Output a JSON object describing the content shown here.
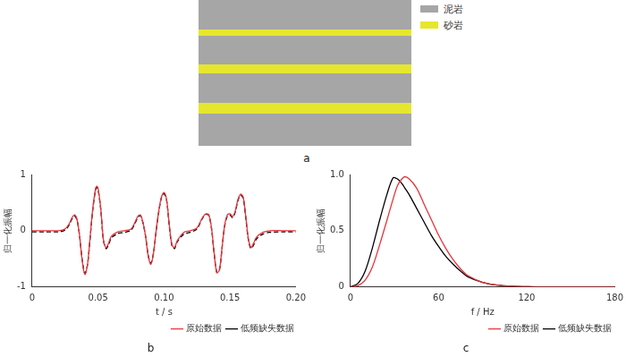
{
  "model": {
    "label": "a",
    "legend": [
      {
        "name": "泥岩",
        "color": "#a6a6a6"
      },
      {
        "name": "砂岩",
        "color": "#e6e62e"
      }
    ],
    "layers": [
      "泥岩",
      "砂岩",
      "泥岩",
      "砂岩",
      "泥岩",
      "砂岩",
      "泥岩"
    ]
  },
  "chart_data": [
    {
      "type": "line",
      "title": "b",
      "x_label": "t / s",
      "y_label": "归一化振幅",
      "x": [
        0,
        0.01,
        0.02,
        0.025,
        0.028,
        0.03,
        0.032,
        0.034,
        0.036,
        0.038,
        0.04,
        0.042,
        0.044,
        0.046,
        0.048,
        0.049,
        0.05,
        0.052,
        0.054,
        0.056,
        0.058,
        0.06,
        0.065,
        0.07,
        0.075,
        0.078,
        0.08,
        0.082,
        0.084,
        0.086,
        0.088,
        0.09,
        0.092,
        0.094,
        0.096,
        0.098,
        0.1,
        0.102,
        0.104,
        0.106,
        0.108,
        0.11,
        0.115,
        0.12,
        0.125,
        0.128,
        0.13,
        0.132,
        0.134,
        0.136,
        0.138,
        0.14,
        0.142,
        0.144,
        0.146,
        0.148,
        0.15,
        0.152,
        0.154,
        0.156,
        0.158,
        0.16,
        0.162,
        0.164,
        0.166,
        0.168,
        0.17,
        0.175,
        0.18,
        0.19,
        0.2
      ],
      "series": [
        {
          "name": "原始数据",
          "color": "#e8333a",
          "line_style": "solid",
          "values": [
            0,
            0,
            0,
            0.03,
            0.12,
            0.22,
            0.28,
            0.2,
            -0.1,
            -0.55,
            -0.78,
            -0.6,
            -0.1,
            0.4,
            0.74,
            0.79,
            0.75,
            0.4,
            -0.15,
            -0.3,
            -0.22,
            -0.1,
            -0.02,
            0,
            0.03,
            0.15,
            0.25,
            0.28,
            0.15,
            -0.1,
            -0.45,
            -0.6,
            -0.4,
            0,
            0.35,
            0.6,
            0.68,
            0.55,
            0.1,
            -0.25,
            -0.3,
            -0.18,
            -0.03,
            0,
            0.05,
            0.18,
            0.26,
            0.3,
            0.28,
            0.05,
            -0.4,
            -0.75,
            -0.7,
            -0.3,
            0.1,
            0.28,
            0.3,
            0.25,
            0.35,
            0.55,
            0.65,
            0.6,
            0.25,
            -0.15,
            -0.3,
            -0.22,
            -0.12,
            -0.03,
            0,
            0,
            0
          ]
        },
        {
          "name": "低频缺失数据",
          "color": "#000000",
          "line_style": "dashed",
          "values": [
            -0.02,
            -0.02,
            -0.02,
            0.01,
            0.1,
            0.2,
            0.26,
            0.19,
            -0.1,
            -0.53,
            -0.76,
            -0.6,
            -0.12,
            0.38,
            0.72,
            0.77,
            0.73,
            0.38,
            -0.16,
            -0.32,
            -0.25,
            -0.13,
            -0.05,
            -0.03,
            0.01,
            0.13,
            0.23,
            0.27,
            0.14,
            -0.1,
            -0.44,
            -0.58,
            -0.4,
            -0.02,
            0.33,
            0.58,
            0.66,
            0.53,
            0.08,
            -0.27,
            -0.32,
            -0.2,
            -0.06,
            -0.03,
            0.03,
            0.17,
            0.25,
            0.29,
            0.27,
            0.04,
            -0.4,
            -0.74,
            -0.7,
            -0.31,
            0.08,
            0.26,
            0.28,
            0.23,
            0.33,
            0.53,
            0.63,
            0.58,
            0.23,
            -0.17,
            -0.32,
            -0.25,
            -0.15,
            -0.06,
            -0.03,
            -0.02,
            -0.02
          ]
        }
      ],
      "xlim": [
        0,
        0.2
      ],
      "xticks": [
        0,
        0.05,
        {
          "value": 0.1,
          "label": "0.10"
        },
        0.15,
        {
          "value": 0.2,
          "label": "0.20"
        }
      ],
      "ylim": [
        -1,
        1
      ],
      "yticks": [
        -1,
        0,
        1
      ],
      "legend": "lower right",
      "grid": false
    },
    {
      "type": "line",
      "title": "c",
      "x_label": "f / Hz",
      "y_label": "归一化振幅",
      "x": [
        0,
        5,
        10,
        15,
        20,
        25,
        29,
        32,
        35,
        37,
        40,
        45,
        50,
        55,
        60,
        65,
        70,
        75,
        80,
        90,
        100,
        110,
        120,
        130,
        180
      ],
      "series": [
        {
          "name": "原始数据",
          "color": "#e8333a",
          "line_style": "solid",
          "values": [
            0,
            0.01,
            0.06,
            0.18,
            0.38,
            0.6,
            0.78,
            0.9,
            0.96,
            0.98,
            0.96,
            0.88,
            0.74,
            0.6,
            0.46,
            0.34,
            0.24,
            0.16,
            0.1,
            0.04,
            0.015,
            0.005,
            0.002,
            0,
            0
          ]
        },
        {
          "name": "低频缺失数据",
          "color": "#000000",
          "line_style": "solid",
          "values": [
            0,
            0.03,
            0.14,
            0.35,
            0.6,
            0.83,
            0.97,
            0.96,
            0.92,
            0.88,
            0.82,
            0.7,
            0.58,
            0.46,
            0.36,
            0.27,
            0.2,
            0.14,
            0.09,
            0.04,
            0.015,
            0.005,
            0.002,
            0,
            0
          ]
        }
      ],
      "xlim": [
        0,
        180
      ],
      "xticks": [
        0,
        60,
        120,
        180
      ],
      "ylim": [
        0,
        1
      ],
      "yticks": [
        0,
        0.5,
        {
          "value": 1,
          "label": "1.0"
        }
      ],
      "legend": "lower right",
      "grid": false
    }
  ]
}
